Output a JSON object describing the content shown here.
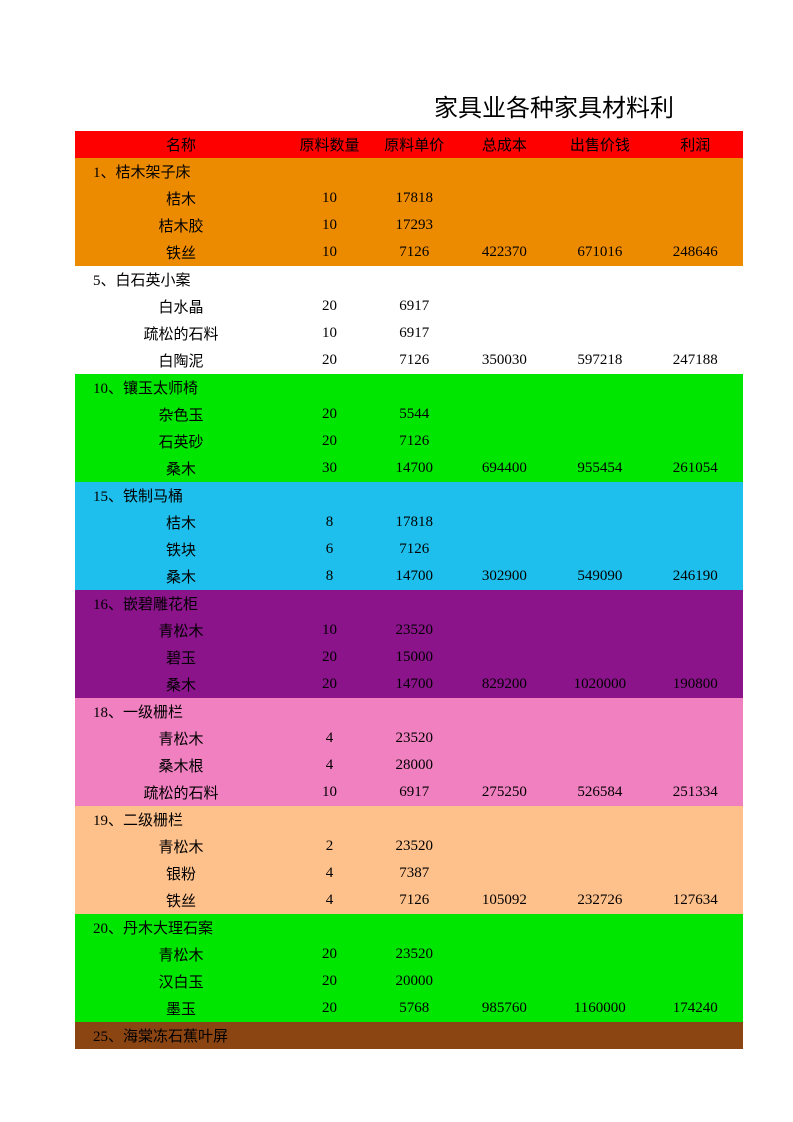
{
  "title": "家具业各种家具材料利",
  "header": {
    "bg": "#ff0000",
    "fg": "#000000",
    "cols": [
      "名称",
      "原料数量",
      "原料单价",
      "总成本",
      "出售价钱",
      "利润"
    ]
  },
  "sections": [
    {
      "bg": "#ed8b00",
      "fg": "#000000",
      "title": "1、桔木架子床",
      "materials": [
        {
          "name": "桔木",
          "qty": "10",
          "price": "17818"
        },
        {
          "name": "桔木胶",
          "qty": "10",
          "price": "17293"
        },
        {
          "name": "铁丝",
          "qty": "10",
          "price": "7126",
          "cost": "422370",
          "sale": "671016",
          "profit": "248646"
        }
      ]
    },
    {
      "bg": "#ffffff",
      "fg": "#000000",
      "title": "5、白石英小案",
      "materials": [
        {
          "name": "白水晶",
          "qty": "20",
          "price": "6917"
        },
        {
          "name": "疏松的石料",
          "qty": "10",
          "price": "6917"
        },
        {
          "name": "白陶泥",
          "qty": "20",
          "price": "7126",
          "cost": "350030",
          "sale": "597218",
          "profit": "247188"
        }
      ]
    },
    {
      "bg": "#00e600",
      "fg": "#000000",
      "title": "10、镶玉太师椅",
      "materials": [
        {
          "name": "杂色玉",
          "qty": "20",
          "price": "5544"
        },
        {
          "name": "石英砂",
          "qty": "20",
          "price": "7126"
        },
        {
          "name": "桑木",
          "qty": "30",
          "price": "14700",
          "cost": "694400",
          "sale": "955454",
          "profit": "261054"
        }
      ]
    },
    {
      "bg": "#1fbfed",
      "fg": "#000000",
      "title": "15、铁制马桶",
      "materials": [
        {
          "name": "桔木",
          "qty": "8",
          "price": "17818"
        },
        {
          "name": "铁块",
          "qty": "6",
          "price": "7126"
        },
        {
          "name": "桑木",
          "qty": "8",
          "price": "14700",
          "cost": "302900",
          "sale": "549090",
          "profit": "246190"
        }
      ]
    },
    {
      "bg": "#8b148b",
      "fg": "#000000",
      "title": "16、嵌碧雕花柜",
      "materials": [
        {
          "name": "青松木",
          "qty": "10",
          "price": "23520"
        },
        {
          "name": "碧玉",
          "qty": "20",
          "price": "15000"
        },
        {
          "name": "桑木",
          "qty": "20",
          "price": "14700",
          "cost": "829200",
          "sale": "1020000",
          "profit": "190800"
        }
      ]
    },
    {
      "bg": "#f080c0",
      "fg": "#000000",
      "title": "18、一级栅栏",
      "materials": [
        {
          "name": "青松木",
          "qty": "4",
          "price": "23520"
        },
        {
          "name": "桑木根",
          "qty": "4",
          "price": "28000"
        },
        {
          "name": "疏松的石料",
          "qty": "10",
          "price": "6917",
          "cost": "275250",
          "sale": "526584",
          "profit": "251334"
        }
      ]
    },
    {
      "bg": "#ffc18c",
      "fg": "#000000",
      "title": "19、二级栅栏",
      "materials": [
        {
          "name": "青松木",
          "qty": "2",
          "price": "23520"
        },
        {
          "name": "银粉",
          "qty": "4",
          "price": "7387"
        },
        {
          "name": "铁丝",
          "qty": "4",
          "price": "7126",
          "cost": "105092",
          "sale": "232726",
          "profit": "127634"
        }
      ]
    },
    {
      "bg": "#00e600",
      "fg": "#000000",
      "title": "20、丹木大理石案",
      "materials": [
        {
          "name": "青松木",
          "qty": "20",
          "price": "23520"
        },
        {
          "name": "汉白玉",
          "qty": "20",
          "price": "20000"
        },
        {
          "name": "墨玉",
          "qty": "20",
          "price": "5768",
          "cost": "985760",
          "sale": "1160000",
          "profit": "174240"
        }
      ]
    },
    {
      "bg": "#8b4513",
      "fg": "#000000",
      "title": "25、海棠冻石蕉叶屏",
      "materials": []
    }
  ]
}
